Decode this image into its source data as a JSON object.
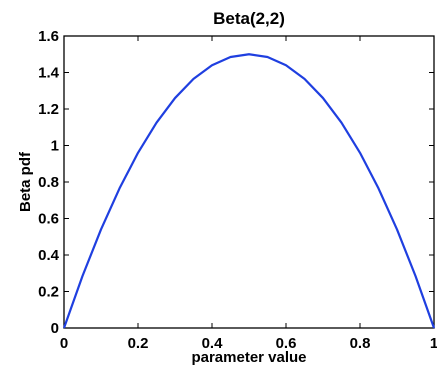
{
  "chart_data": {
    "type": "line",
    "title": "Beta(2,2)",
    "xlabel": "parameter value",
    "ylabel": "Beta pdf",
    "xlim": [
      0,
      1
    ],
    "ylim": [
      0,
      1.6
    ],
    "xticks": [
      0,
      0.2,
      0.4,
      0.6,
      0.8,
      1
    ],
    "xtick_labels": [
      "0",
      "0.2",
      "0.4",
      "0.6",
      "0.8",
      "1"
    ],
    "yticks": [
      0,
      0.2,
      0.4,
      0.6,
      0.8,
      1,
      1.2,
      1.4,
      1.6
    ],
    "ytick_labels": [
      "0",
      "0.2",
      "0.4",
      "0.6",
      "0.8",
      "1",
      "1.2",
      "1.4",
      "1.6"
    ],
    "grid": false,
    "series": [
      {
        "color": "#1f3fe0",
        "x": [
          0,
          0.05,
          0.1,
          0.15,
          0.2,
          0.25,
          0.3,
          0.35,
          0.4,
          0.45,
          0.5,
          0.55,
          0.6,
          0.65,
          0.7,
          0.75,
          0.8,
          0.85,
          0.9,
          0.95,
          1
        ],
        "y": [
          0,
          0.285,
          0.54,
          0.765,
          0.96,
          1.125,
          1.26,
          1.365,
          1.44,
          1.485,
          1.5,
          1.485,
          1.44,
          1.365,
          1.26,
          1.125,
          0.96,
          0.765,
          0.54,
          0.285,
          0
        ]
      }
    ]
  }
}
